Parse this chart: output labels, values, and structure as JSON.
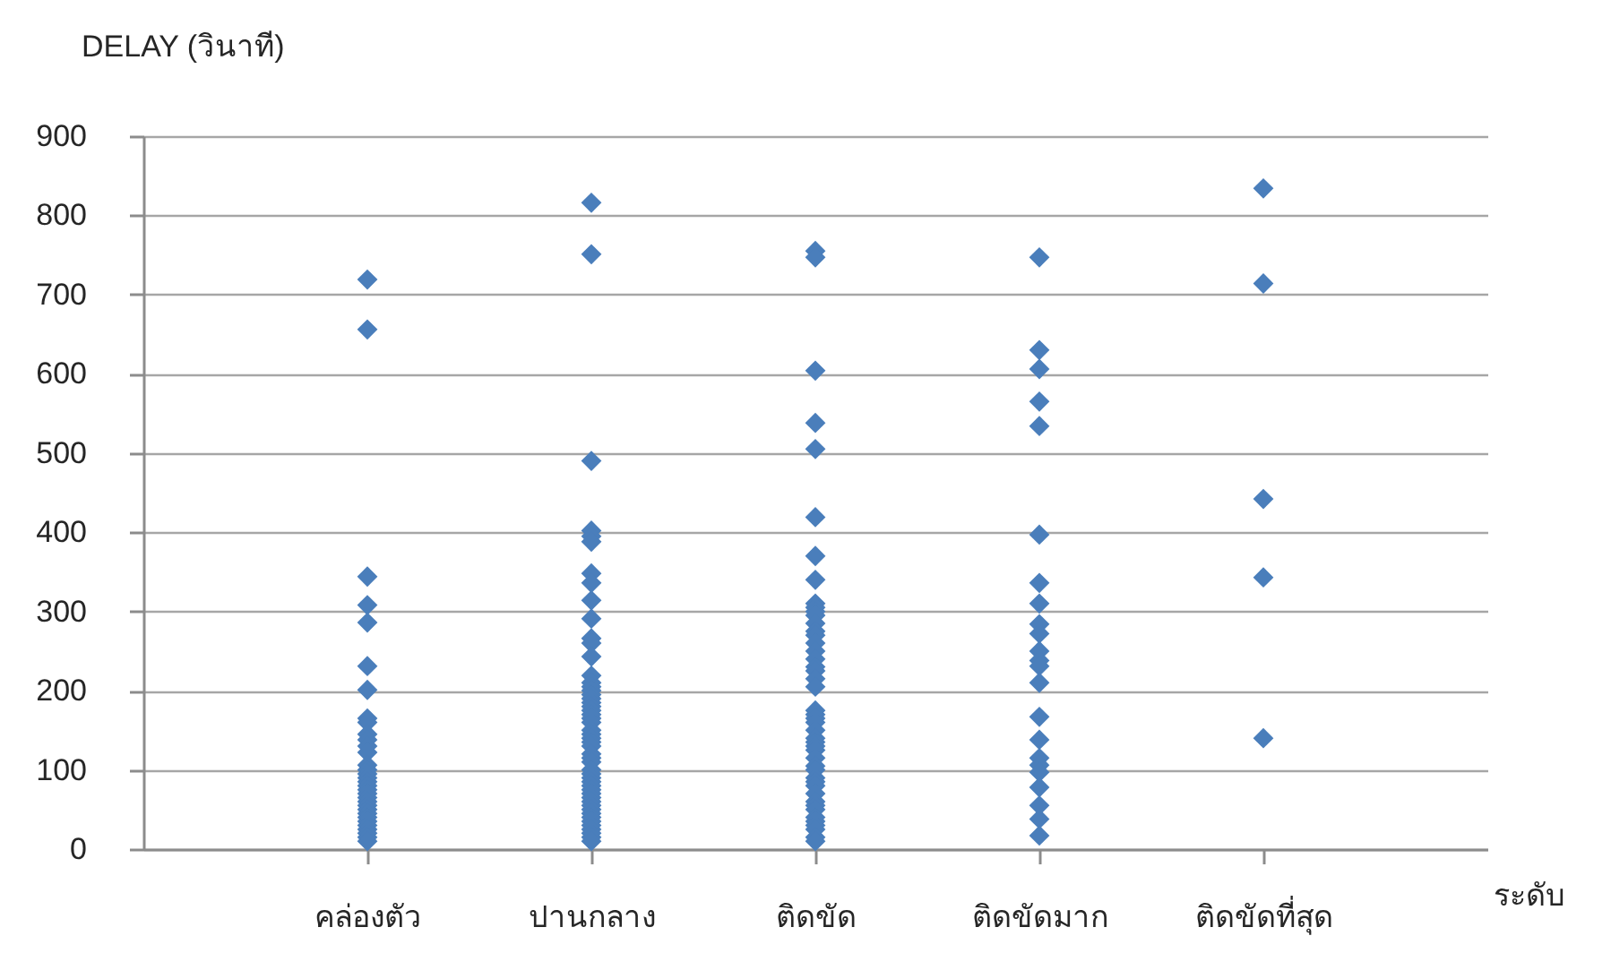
{
  "chart_data": {
    "type": "scatter",
    "xlabel": "ระดับ",
    "ylabel": "DELAY (วินาที)",
    "categories": [
      "คล่องตัว",
      "ปานกลาง",
      "ติดขัด",
      "ติดขัดมาก",
      "ติดขัดที่สุด"
    ],
    "ylim": [
      0,
      900
    ],
    "yticks": [
      0,
      100,
      200,
      300,
      400,
      500,
      600,
      700,
      800,
      900
    ],
    "grid": "y",
    "marker": "diamond",
    "series": [
      {
        "color": "#4a7ebb",
        "x": [
          "คล่องตัว",
          "คล่องตัว",
          "คล่องตัว",
          "คล่องตัว",
          "คล่องตัว",
          "คล่องตัว",
          "คล่องตัว",
          "คล่องตัว",
          "คล่องตัว",
          "คล่องตัว",
          "คล่องตัว",
          "คล่องตัว",
          "คล่องตัว",
          "คล่องตัว",
          "คล่องตัว",
          "คล่องตัว",
          "คล่องตัว",
          "คล่องตัว",
          "คล่องตัว",
          "คล่องตัว",
          "คล่องตัว",
          "คล่องตัว",
          "คล่องตัว",
          "คล่องตัว",
          "คล่องตัว",
          "คล่องตัว",
          "คล่องตัว",
          "คล่องตัว",
          "คล่องตัว",
          "คล่องตัว",
          "คล่องตัว",
          "คล่องตัว",
          "คล่องตัว",
          "ปานกลาง",
          "ปานกลาง",
          "ปานกลาง",
          "ปานกลาง",
          "ปานกลาง",
          "ปานกลาง",
          "ปานกลาง",
          "ปานกลาง",
          "ปานกลาง",
          "ปานกลาง",
          "ปานกลาง",
          "ปานกลาง",
          "ปานกลาง",
          "ปานกลาง",
          "ปานกลาง",
          "ปานกลาง",
          "ปานกลาง",
          "ปานกลาง",
          "ปานกลาง",
          "ปานกลาง",
          "ปานกลาง",
          "ปานกลาง",
          "ปานกลาง",
          "ปานกลาง",
          "ปานกลาง",
          "ปานกลาง",
          "ปานกลาง",
          "ปานกลาง",
          "ปานกลาง",
          "ปานกลาง",
          "ปานกลาง",
          "ปานกลาง",
          "ปานกลาง",
          "ปานกลาง",
          "ปานกลาง",
          "ปานกลาง",
          "ปานกลาง",
          "ปานกลาง",
          "ปานกลาง",
          "ปานกลาง",
          "ปานกลาง",
          "ปานกลาง",
          "ปานกลาง",
          "ปานกลาง",
          "ปานกลาง",
          "ปานกลาง",
          "ปานกลาง",
          "ปานกลาง",
          "ปานกลาง",
          "ปานกลาง",
          "ปานกลาง",
          "ปานกลาง",
          "ติดขัด",
          "ติดขัด",
          "ติดขัด",
          "ติดขัด",
          "ติดขัด",
          "ติดขัด",
          "ติดขัด",
          "ติดขัด",
          "ติดขัด",
          "ติดขัด",
          "ติดขัด",
          "ติดขัด",
          "ติดขัด",
          "ติดขัด",
          "ติดขัด",
          "ติดขัด",
          "ติดขัด",
          "ติดขัด",
          "ติดขัด",
          "ติดขัด",
          "ติดขัด",
          "ติดขัด",
          "ติดขัด",
          "ติดขัด",
          "ติดขัด",
          "ติดขัด",
          "ติดขัด",
          "ติดขัด",
          "ติดขัด",
          "ติดขัด",
          "ติดขัด",
          "ติดขัด",
          "ติดขัด",
          "ติดขัด",
          "ติดขัด",
          "ติดขัด",
          "ติดขัด",
          "ติดขัด",
          "ติดขัด",
          "ติดขัด",
          "ติดขัด",
          "ติดขัด",
          "ติดขัด",
          "ติดขัด",
          "ติดขัด",
          "ติดขัด",
          "ติดขัด",
          "ติดขัดมาก",
          "ติดขัดมาก",
          "ติดขัดมาก",
          "ติดขัดมาก",
          "ติดขัดมาก",
          "ติดขัดมาก",
          "ติดขัดมาก",
          "ติดขัดมาก",
          "ติดขัดมาก",
          "ติดขัดมาก",
          "ติดขัดมาก",
          "ติดขัดมาก",
          "ติดขัดมาก",
          "ติดขัดมาก",
          "ติดขัดมาก",
          "ติดขัดมาก",
          "ติดขัดมาก",
          "ติดขัดมาก",
          "ติดขัดมาก",
          "ติดขัดมาก",
          "ติดขัดมาก",
          "ติดขัดมาก",
          "ติดขัดมาก",
          "ติดขัดที่สุด",
          "ติดขัดที่สุด",
          "ติดขัดที่สุด",
          "ติดขัดที่สุด",
          "ติดขัดที่สุด"
        ],
        "values": [
          719,
          656,
          344,
          308,
          286,
          231,
          201,
          165,
          160,
          145,
          138,
          130,
          122,
          106,
          100,
          95,
          90,
          85,
          80,
          75,
          70,
          65,
          60,
          55,
          50,
          45,
          40,
          35,
          30,
          25,
          20,
          15,
          10,
          816,
          751,
          490,
          402,
          395,
          388,
          348,
          336,
          314,
          291,
          266,
          260,
          243,
          219,
          210,
          205,
          200,
          195,
          190,
          185,
          180,
          175,
          170,
          165,
          160,
          150,
          145,
          140,
          135,
          130,
          120,
          115,
          110,
          100,
          95,
          90,
          85,
          80,
          75,
          70,
          65,
          60,
          55,
          50,
          45,
          40,
          35,
          30,
          25,
          20,
          15,
          10,
          755,
          747,
          604,
          538,
          505,
          419,
          370,
          340,
          310,
          305,
          300,
          295,
          285,
          275,
          270,
          260,
          250,
          240,
          230,
          225,
          215,
          205,
          175,
          170,
          165,
          160,
          150,
          140,
          135,
          130,
          125,
          115,
          105,
          100,
          90,
          85,
          80,
          70,
          60,
          55,
          50,
          40,
          35,
          30,
          25,
          15,
          10,
          747,
          630,
          606,
          565,
          534,
          397,
          336,
          310,
          284,
          272,
          250,
          238,
          231,
          210,
          167,
          138,
          115,
          106,
          97,
          78,
          55,
          38,
          17,
          834,
          714,
          442,
          343,
          140
        ]
      }
    ]
  }
}
